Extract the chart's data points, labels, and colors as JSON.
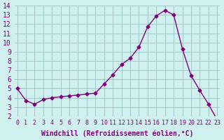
{
  "x": [
    0,
    1,
    2,
    3,
    4,
    5,
    6,
    7,
    8,
    9,
    10,
    11,
    12,
    13,
    14,
    15,
    16,
    17,
    18,
    19,
    20,
    21,
    22,
    23
  ],
  "y": [
    5.0,
    3.7,
    3.3,
    3.8,
    4.0,
    4.1,
    4.2,
    4.3,
    4.4,
    4.5,
    5.5,
    6.5,
    7.6,
    8.3,
    9.5,
    11.7,
    12.9,
    13.5,
    13.0,
    9.3,
    6.4,
    4.8,
    3.3,
    1.6
  ],
  "xlim": [
    -0.3,
    23.3
  ],
  "ylim": [
    2,
    14
  ],
  "xticks": [
    0,
    1,
    2,
    3,
    4,
    5,
    6,
    7,
    8,
    9,
    10,
    11,
    12,
    13,
    14,
    15,
    16,
    17,
    18,
    19,
    20,
    21,
    22,
    23
  ],
  "yticks": [
    2,
    3,
    4,
    5,
    6,
    7,
    8,
    9,
    10,
    11,
    12,
    13,
    14
  ],
  "xlabel": "Windchill (Refroidissement éolien,°C)",
  "line_color": "#800080",
  "marker_color": "#800080",
  "bg_color": "#d0f0f0",
  "grid_color": "#a0c8c8",
  "xlabel_color": "#800080",
  "tick_color": "#800080",
  "xlabel_fontsize": 7,
  "ytick_fontsize": 7,
  "xtick_fontsize": 6
}
